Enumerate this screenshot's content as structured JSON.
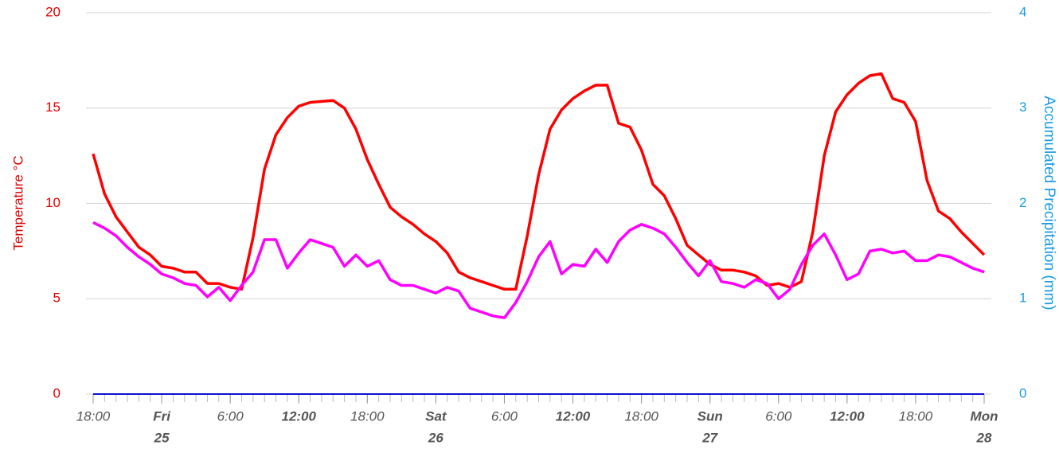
{
  "chart_data": {
    "type": "line",
    "ylabel": "Temperature °C",
    "y2label": "Accumulated Precipitation (mm)",
    "x": [
      0,
      1,
      2,
      3,
      4,
      5,
      6,
      7,
      8,
      9,
      10,
      11,
      12,
      13,
      14,
      15,
      16,
      17,
      18,
      19,
      20,
      21,
      22,
      23,
      24,
      25,
      26,
      27,
      28,
      29,
      30,
      31,
      32,
      33,
      34,
      35,
      36,
      37,
      38,
      39,
      40,
      41,
      42,
      43,
      44,
      45,
      46,
      47,
      48,
      49,
      50,
      51,
      52,
      53,
      54,
      55,
      56,
      57,
      58,
      59,
      60,
      61,
      62,
      63,
      64,
      65,
      66,
      67,
      68,
      69,
      70,
      71,
      72,
      73,
      74,
      75,
      76,
      77,
      78
    ],
    "xlim": [
      0,
      78
    ],
    "xticks": [
      {
        "value": 0,
        "label": "18:00"
      },
      {
        "value": 6,
        "label": "Fri",
        "sublabel": "25",
        "bold": true
      },
      {
        "value": 12,
        "label": "6:00"
      },
      {
        "value": 18,
        "label": "12:00",
        "bold": true
      },
      {
        "value": 24,
        "label": "18:00"
      },
      {
        "value": 30,
        "label": "Sat",
        "sublabel": "26",
        "bold": true
      },
      {
        "value": 36,
        "label": "6:00"
      },
      {
        "value": 42,
        "label": "12:00",
        "bold": true
      },
      {
        "value": 48,
        "label": "18:00"
      },
      {
        "value": 54,
        "label": "Sun",
        "sublabel": "27",
        "bold": true
      },
      {
        "value": 60,
        "label": "6:00"
      },
      {
        "value": 66,
        "label": "12:00",
        "bold": true
      },
      {
        "value": 72,
        "label": "18:00"
      },
      {
        "value": 78,
        "label": "Mon",
        "sublabel": "28",
        "bold": true
      }
    ],
    "ylim": [
      0,
      20
    ],
    "yticks": [
      0,
      5,
      10,
      15,
      20
    ],
    "y2lim": [
      0,
      4
    ],
    "y2ticks": [
      0,
      1,
      2,
      3,
      4
    ],
    "grid": true,
    "series": [
      {
        "color": "#ff0000",
        "values": [
          12.6,
          10.5,
          9.3,
          8.5,
          7.7,
          7.3,
          6.7,
          6.6,
          6.4,
          6.4,
          5.8,
          5.8,
          5.6,
          5.5,
          8.2,
          11.8,
          13.6,
          14.5,
          15.1,
          15.3,
          15.35,
          15.4,
          15.0,
          13.9,
          12.3,
          11.0,
          9.8,
          9.3,
          8.9,
          8.4,
          8.0,
          7.4,
          6.4,
          6.1,
          5.9,
          5.7,
          5.5,
          5.5,
          8.3,
          11.5,
          13.9,
          14.9,
          15.5,
          15.9,
          16.2,
          16.2,
          14.2,
          14.0,
          12.8,
          11.0,
          10.4,
          9.2,
          7.8,
          7.3,
          6.8,
          6.5,
          6.5,
          6.4,
          6.2,
          5.7,
          5.8,
          5.6,
          5.9,
          8.5,
          12.5,
          14.8,
          15.7,
          16.3,
          16.7,
          16.8,
          15.5,
          15.3,
          14.3,
          11.2,
          9.6,
          9.2,
          8.5,
          7.9,
          7.3
        ]
      },
      {
        "color": "#ff00ff",
        "values": [
          9.0,
          8.7,
          8.3,
          7.7,
          7.2,
          6.8,
          6.3,
          6.1,
          5.8,
          5.7,
          5.1,
          5.6,
          4.9,
          5.7,
          6.4,
          8.1,
          8.1,
          6.6,
          7.4,
          8.1,
          7.9,
          7.7,
          6.7,
          7.3,
          6.7,
          7.0,
          6.0,
          5.7,
          5.7,
          5.5,
          5.3,
          5.6,
          5.4,
          4.5,
          4.3,
          4.1,
          4.0,
          4.8,
          5.9,
          7.2,
          8.0,
          6.3,
          6.8,
          6.7,
          7.6,
          6.9,
          8.0,
          8.6,
          8.9,
          8.7,
          8.4,
          7.7,
          6.9,
          6.2,
          7.0,
          5.9,
          5.8,
          5.6,
          6.0,
          5.8,
          5.0,
          5.5,
          6.8,
          7.8,
          8.4,
          7.3,
          6.0,
          6.3,
          7.5,
          7.6,
          7.4,
          7.5,
          7.0,
          7.0,
          7.3,
          7.2,
          6.9,
          6.6,
          6.4
        ]
      },
      {
        "color": "#1010d0",
        "axis": "y2",
        "values": [
          0,
          0,
          0,
          0,
          0,
          0,
          0,
          0,
          0,
          0,
          0,
          0,
          0,
          0,
          0,
          0,
          0,
          0,
          0,
          0,
          0,
          0,
          0,
          0,
          0,
          0,
          0,
          0,
          0,
          0,
          0,
          0,
          0,
          0,
          0,
          0,
          0,
          0,
          0,
          0,
          0,
          0,
          0,
          0,
          0,
          0,
          0,
          0,
          0,
          0,
          0,
          0,
          0,
          0,
          0,
          0,
          0,
          0,
          0,
          0,
          0,
          0,
          0,
          0,
          0,
          0,
          0,
          0,
          0,
          0,
          0,
          0,
          0,
          0,
          0,
          0,
          0,
          0,
          0
        ]
      }
    ]
  }
}
